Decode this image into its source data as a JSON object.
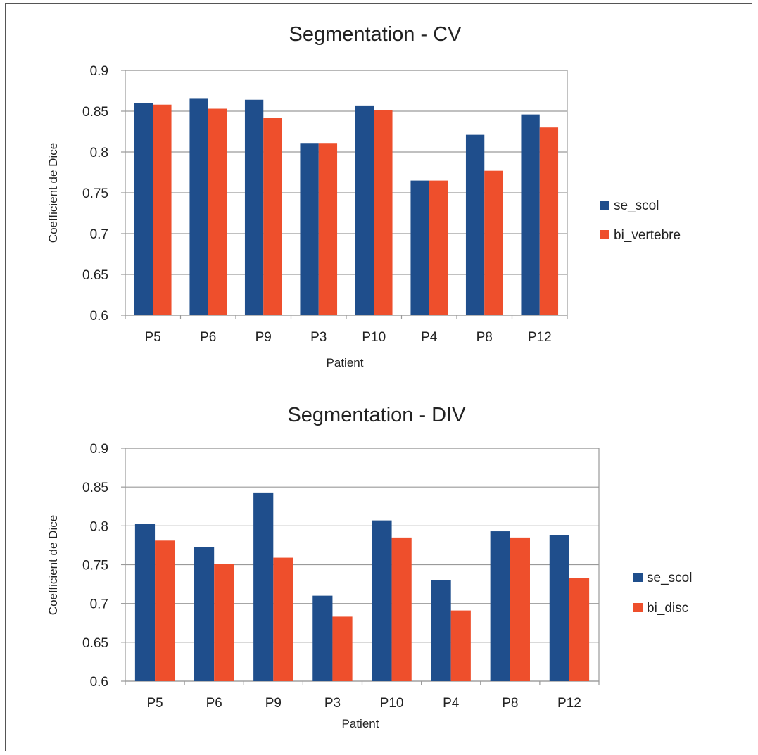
{
  "chart_data": [
    {
      "type": "bar",
      "title": "Segmentation - CV",
      "xlabel": "Patient",
      "ylabel": "Coefficient de Dice",
      "ylim": [
        0.6,
        0.9
      ],
      "yticks": [
        "0.6",
        "0.65",
        "0.7",
        "0.75",
        "0.8",
        "0.85",
        "0.9"
      ],
      "grid": "horizontal major",
      "legend_position": "right",
      "categories": [
        "P5",
        "P6",
        "P9",
        "P3",
        "P10",
        "P4",
        "P8",
        "P12"
      ],
      "series": [
        {
          "name": "se_scol",
          "color": "#1F4E8C",
          "values": [
            0.86,
            0.866,
            0.864,
            0.811,
            0.857,
            0.765,
            0.821,
            0.846
          ]
        },
        {
          "name": "bi_vertebre",
          "color": "#EE4F2C",
          "values": [
            0.858,
            0.853,
            0.842,
            0.811,
            0.851,
            0.765,
            0.777,
            0.83
          ]
        }
      ]
    },
    {
      "type": "bar",
      "title": "Segmentation - DIV",
      "xlabel": "Patient",
      "ylabel": "Coefficient de Dice",
      "ylim": [
        0.6,
        0.9
      ],
      "yticks": [
        "0.6",
        "0.65",
        "0.7",
        "0.75",
        "0.8",
        "0.85",
        "0.9"
      ],
      "grid": "horizontal major",
      "legend_position": "right",
      "categories": [
        "P5",
        "P6",
        "P9",
        "P3",
        "P10",
        "P4",
        "P8",
        "P12"
      ],
      "series": [
        {
          "name": "se_scol",
          "color": "#1F4E8C",
          "values": [
            0.803,
            0.773,
            0.843,
            0.71,
            0.807,
            0.73,
            0.793,
            0.788
          ]
        },
        {
          "name": "bi_disc",
          "color": "#EE4F2C",
          "values": [
            0.781,
            0.751,
            0.759,
            0.683,
            0.785,
            0.691,
            0.785,
            0.733
          ]
        }
      ]
    }
  ]
}
